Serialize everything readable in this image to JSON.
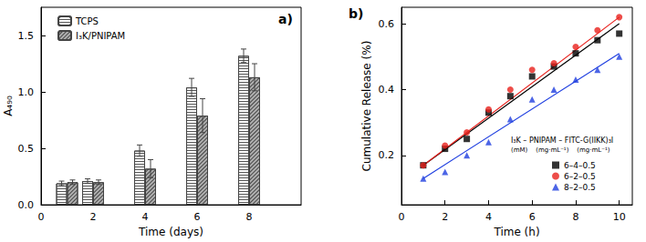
{
  "chart_data": [
    {
      "type": "bar",
      "annotations": [
        "a)"
      ],
      "x_label": "Time (days)",
      "y_label": "A₄₉₀",
      "x": [
        1,
        2,
        4,
        6,
        8
      ],
      "series": [
        {
          "name": "TCPS",
          "color": "#ffffff",
          "values": [
            0.19,
            0.21,
            0.48,
            1.04,
            1.32
          ],
          "errors": [
            0.02,
            0.02,
            0.05,
            0.08,
            0.06
          ]
        },
        {
          "name": "I₃K/PNIPAM",
          "color": "#b0b0b0",
          "values": [
            0.2,
            0.2,
            0.32,
            0.79,
            1.13
          ],
          "errors": [
            0.02,
            0.02,
            0.08,
            0.15,
            0.12
          ]
        }
      ],
      "xlim": [
        0,
        10
      ],
      "xticks": [
        0,
        2,
        4,
        6,
        8
      ],
      "ylim": [
        0,
        1.75
      ],
      "yticks": [
        {
          "value": 0,
          "label": "0.0"
        },
        {
          "value": 0.5,
          "label": "0.5"
        },
        {
          "value": 1,
          "label": "1.0"
        },
        {
          "value": 1.5,
          "label": "1.5"
        }
      ],
      "grid": false,
      "legend": "upper left"
    },
    {
      "type": "scatter",
      "annotations": [
        "b)",
        "I₃K – PNIPAM – FITC-G(IIKK)₃I",
        "(mM)    (mg·mL⁻¹)    (mg·mL⁻¹)"
      ],
      "x_label": "Time (h)",
      "y_label": "Cumulative Release (%)",
      "x": [
        1,
        2,
        3,
        4,
        5,
        6,
        7,
        8,
        9,
        10
      ],
      "series": [
        {
          "name": "6–4–0.5",
          "color": "#000000",
          "marker": "square",
          "line_style": "solid",
          "values": [
            0.17,
            0.22,
            0.25,
            0.33,
            0.38,
            0.44,
            0.47,
            0.51,
            0.55,
            0.57
          ],
          "fit_x": [
            1,
            10
          ],
          "fit_values": [
            0.17,
            0.6
          ]
        },
        {
          "name": "6–2–0.5",
          "color": "#e8201c",
          "marker": "circle",
          "line_style": "solid",
          "values": [
            0.17,
            0.23,
            0.27,
            0.34,
            0.4,
            0.46,
            0.48,
            0.53,
            0.58,
            0.62
          ],
          "fit_x": [
            1,
            10
          ],
          "fit_values": [
            0.17,
            0.62
          ]
        },
        {
          "name": "8–2–0.5",
          "color": "#1f3fe0",
          "marker": "triangle",
          "line_style": "solid",
          "values": [
            0.13,
            0.15,
            0.2,
            0.24,
            0.31,
            0.37,
            0.4,
            0.43,
            0.46,
            0.5
          ],
          "fit_x": [
            1,
            10
          ],
          "fit_values": [
            0.13,
            0.51
          ]
        }
      ],
      "xlim": [
        0,
        10.6
      ],
      "xticks": [
        0,
        2,
        4,
        6,
        8,
        10
      ],
      "ylim": [
        0.05,
        0.65
      ],
      "yticks": [
        0.2,
        0.4,
        0.6
      ],
      "grid": false,
      "legend": "lower right"
    }
  ]
}
